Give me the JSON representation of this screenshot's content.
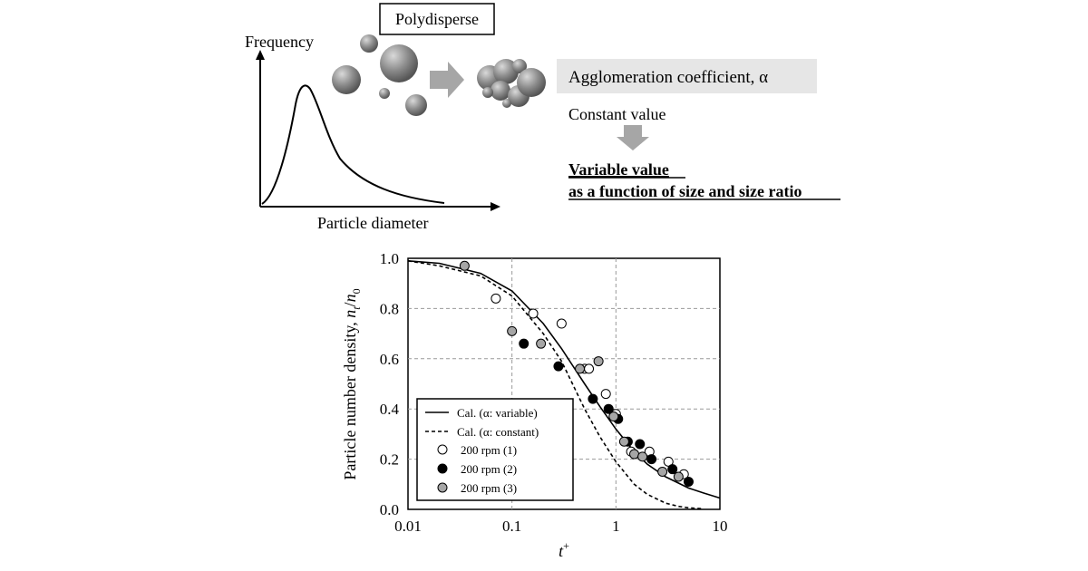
{
  "schematic": {
    "ylabel": "Frequency",
    "xlabel": "Particle diameter",
    "polydisperse_label": "Polydisperse",
    "agglomeration_label": "Agglomeration coefficient, α",
    "constant_label": "Constant  value",
    "variable_line1": "Variable value",
    "variable_line2": "as a function of size and size ratio",
    "colors": {
      "box_fill": "#e6e6e6",
      "arrow": "#a6a6a6",
      "sphere": "#8c8c8c"
    }
  },
  "chart_data": {
    "type": "scatter",
    "title": "",
    "xlabel": "t+",
    "ylabel": "Particle number density, nt/n0",
    "xscale": "log",
    "xlim": [
      0.01,
      10
    ],
    "ylim": [
      0,
      1.0
    ],
    "xticks": [
      "0.01",
      "0.1",
      "1",
      "10"
    ],
    "yticks": [
      "0.0",
      "0.2",
      "0.4",
      "0.6",
      "0.8",
      "1.0"
    ],
    "grid": true,
    "legend_position": "bottom-left",
    "series": [
      {
        "name": "Cal. (α: variable)",
        "kind": "line",
        "style": "solid",
        "x": [
          0.01,
          0.02,
          0.05,
          0.1,
          0.2,
          0.3,
          0.5,
          0.7,
          1,
          1.5,
          2,
          3,
          5,
          7,
          10
        ],
        "y": [
          0.99,
          0.98,
          0.94,
          0.87,
          0.74,
          0.64,
          0.5,
          0.41,
          0.32,
          0.23,
          0.18,
          0.13,
          0.085,
          0.065,
          0.045
        ]
      },
      {
        "name": "Cal. (α: constant)",
        "kind": "line",
        "style": "dashed",
        "x": [
          0.01,
          0.02,
          0.05,
          0.1,
          0.2,
          0.3,
          0.5,
          0.7,
          1,
          1.5,
          2,
          3,
          4,
          5,
          7
        ],
        "y": [
          0.99,
          0.97,
          0.93,
          0.85,
          0.7,
          0.59,
          0.4,
          0.29,
          0.19,
          0.1,
          0.06,
          0.025,
          0.012,
          0.006,
          0.002
        ]
      },
      {
        "name": "200 rpm (1)",
        "kind": "marker",
        "fill": "#ffffff",
        "x": [
          0.07,
          0.16,
          0.3,
          0.5,
          0.55,
          0.8,
          1.0,
          1.4,
          2.1,
          3.2,
          4.5
        ],
        "y": [
          0.84,
          0.78,
          0.74,
          0.56,
          0.56,
          0.46,
          0.38,
          0.23,
          0.23,
          0.19,
          0.14
        ]
      },
      {
        "name": "200 rpm (2)",
        "kind": "marker",
        "fill": "#000000",
        "x": [
          0.13,
          0.28,
          0.6,
          0.85,
          1.05,
          1.3,
          1.7,
          2.2,
          3.5,
          5.0
        ],
        "y": [
          0.66,
          0.57,
          0.44,
          0.4,
          0.36,
          0.27,
          0.26,
          0.2,
          0.16,
          0.11
        ]
      },
      {
        "name": "200 rpm (3)",
        "kind": "marker",
        "fill": "#a6a6a6",
        "x": [
          0.035,
          0.1,
          0.19,
          0.45,
          0.68,
          0.95,
          1.2,
          1.5,
          1.8,
          2.8,
          4.0
        ],
        "y": [
          0.97,
          0.71,
          0.66,
          0.56,
          0.59,
          0.37,
          0.27,
          0.22,
          0.21,
          0.15,
          0.13
        ]
      }
    ]
  }
}
